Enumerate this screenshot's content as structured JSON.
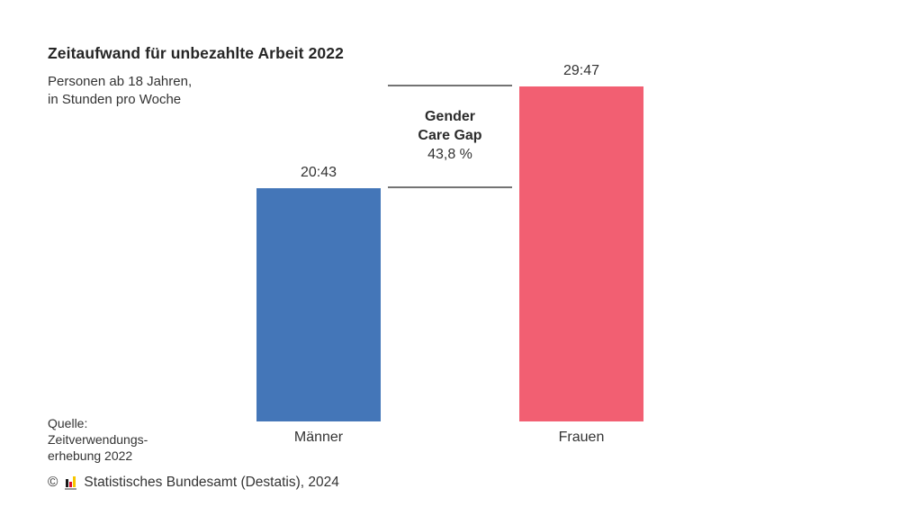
{
  "chart": {
    "title": "Zeitaufwand für unbezahlte Arbeit 2022",
    "subtitle_line1": "Personen ab 18 Jahren,",
    "subtitle_line2": "in Stunden pro Woche",
    "annotation": {
      "line1": "Gender",
      "line2": "Care Gap",
      "line3": "43,8 %"
    },
    "source_line1": "Quelle:",
    "source_line2": "Zeitverwendungs-",
    "source_line3": "erhebung 2022",
    "footer": {
      "copyright": "©",
      "text": "Statistisches Bundesamt (Destatis), 2024"
    }
  },
  "chart_data": {
    "type": "bar",
    "title": "Zeitaufwand für unbezahlte Arbeit 2022",
    "subtitle": "Personen ab 18 Jahren, in Stunden pro Woche",
    "categories": [
      "Männer",
      "Frauen"
    ],
    "values_label": [
      "20:43",
      "29:47"
    ],
    "values_hours_per_week": [
      20.72,
      29.78
    ],
    "annotation": "Gender Care Gap 43,8 %",
    "gender_care_gap_percent": 43.8,
    "bar_colors": [
      "#4476B8",
      "#F25F72"
    ],
    "gap_line_color": "#737373",
    "ylim": [
      0,
      29.78
    ],
    "grid": false,
    "legend": false,
    "source": "Quelle: Zeitverwendungserhebung 2022",
    "credit": "© Statistisches Bundesamt (Destatis), 2024"
  },
  "logo": {
    "name": "destatis-bar-chart-logo",
    "colors": {
      "bar1": "#1a1a1a",
      "bar2": "#d90f2e",
      "bar3": "#f7c600",
      "baseline": "#9a9a9a"
    }
  }
}
